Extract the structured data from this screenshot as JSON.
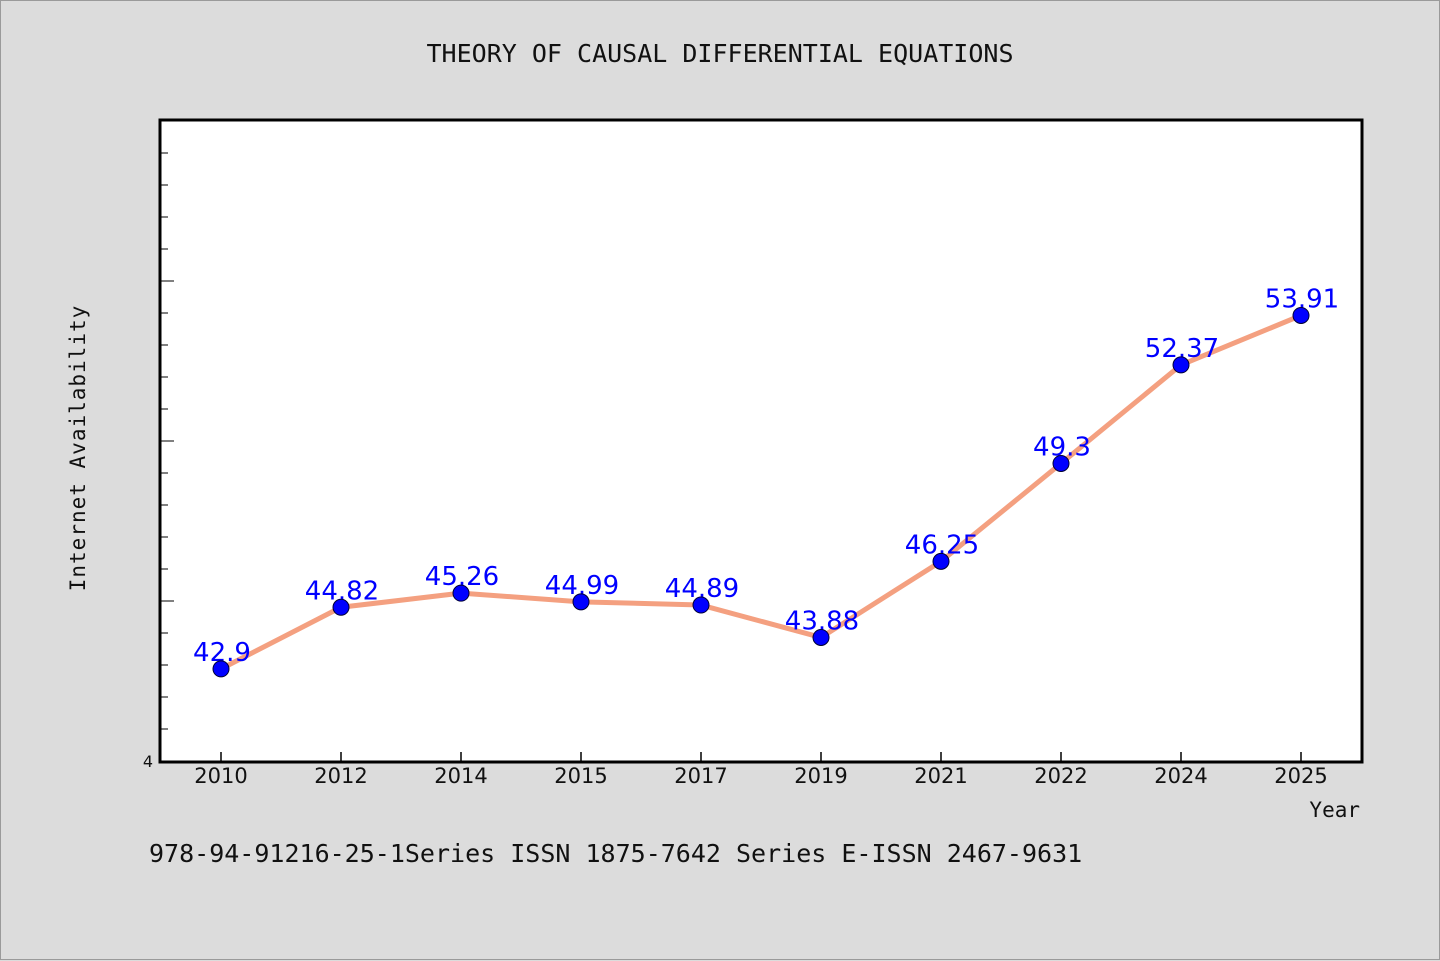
{
  "chart_data": {
    "type": "line",
    "title": "THEORY OF CAUSAL DIFFERENTIAL EQUATIONS",
    "xlabel": "Year",
    "ylabel": "Internet Availability",
    "footer": "978-94-91216-25-1Series ISSN 1875-7642 Series E-ISSN 2467-9631",
    "y_tick_label": "4",
    "categories": [
      "2010",
      "2012",
      "2014",
      "2015",
      "2017",
      "2019",
      "2021",
      "2022",
      "2024",
      "2025"
    ],
    "series": [
      {
        "values": [
          42.9,
          44.82,
          45.26,
          44.99,
          44.89,
          43.88,
          46.25,
          49.3,
          52.37,
          53.91
        ],
        "labels": [
          "42.9",
          "44.82",
          "45.26",
          "44.99",
          "44.89",
          "43.88",
          "46.25",
          "49.3",
          "52.37",
          "53.91"
        ]
      }
    ],
    "ylim": [
      40,
      60
    ],
    "grid": false,
    "legend": "none",
    "colors": {
      "line": "#f4a080",
      "marker": "#0000ff",
      "data_label": "#0000ff",
      "background": "#dcdcdc",
      "plot_background": "#ffffff"
    }
  }
}
